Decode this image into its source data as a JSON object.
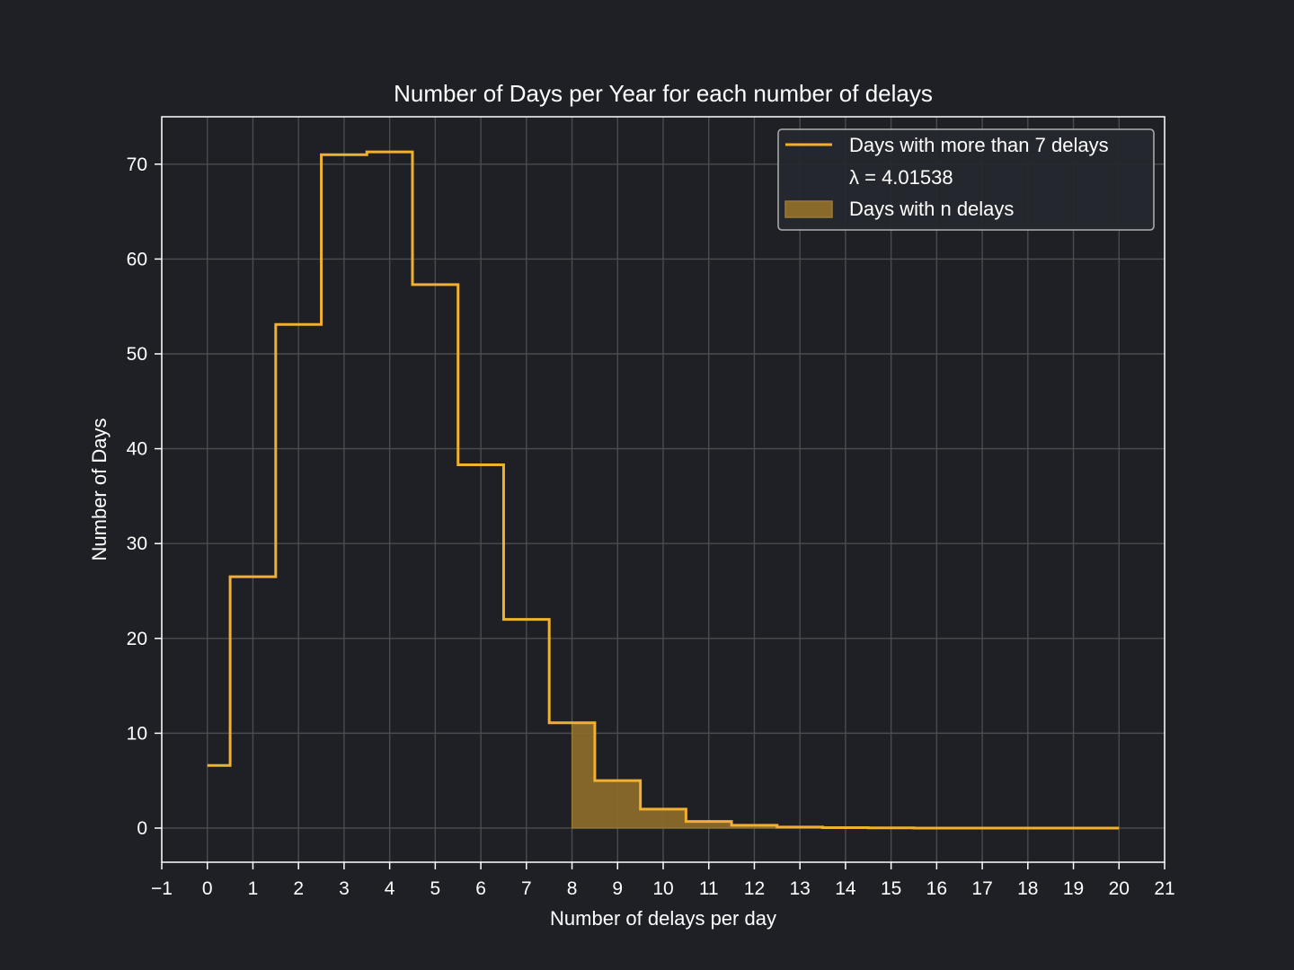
{
  "chart_data": {
    "type": "line",
    "title": "Number of Days per Year for each number of delays",
    "xlabel": "Number of delays per day",
    "ylabel": "Number of Days",
    "xlim": [
      -1,
      21
    ],
    "ylim": [
      -3.6,
      75
    ],
    "x_ticks": [
      -1,
      0,
      1,
      2,
      3,
      4,
      5,
      6,
      7,
      8,
      9,
      10,
      11,
      12,
      13,
      14,
      15,
      16,
      17,
      18,
      19,
      20,
      21
    ],
    "x_tick_labels": [
      "−1",
      "0",
      "1",
      "2",
      "3",
      "4",
      "5",
      "6",
      "7",
      "8",
      "9",
      "10",
      "11",
      "12",
      "13",
      "14",
      "15",
      "16",
      "17",
      "18",
      "19",
      "20",
      "21"
    ],
    "y_ticks": [
      0,
      10,
      20,
      30,
      40,
      50,
      60,
      70
    ],
    "y_tick_labels": [
      "0",
      "10",
      "20",
      "30",
      "40",
      "50",
      "60",
      "70"
    ],
    "grid": true,
    "legend_position": "top-right",
    "series": [
      {
        "name": "Days with more than 7 delays",
        "kind": "step",
        "color": "#f0b030",
        "x": [
          0,
          1,
          2,
          3,
          4,
          5,
          6,
          7,
          8,
          9,
          10,
          11,
          12,
          13,
          14,
          15,
          16,
          17,
          18,
          19,
          20
        ],
        "values": [
          6.6,
          26.5,
          53.1,
          71.0,
          71.3,
          57.3,
          38.3,
          22.0,
          11.1,
          5.0,
          2.0,
          0.7,
          0.3,
          0.1,
          0.05,
          0.02,
          0,
          0,
          0,
          0,
          0
        ]
      },
      {
        "name": "Days with n delays",
        "kind": "filled-step",
        "color": "#8a6a2a",
        "edge_color": "#9b7a35",
        "x_start": 8,
        "x": [
          8,
          9,
          10,
          11,
          12,
          13,
          14,
          15,
          16,
          17,
          18,
          19,
          20
        ],
        "values": [
          11.1,
          5.0,
          2.0,
          0.7,
          0.3,
          0.1,
          0.05,
          0.02,
          0,
          0,
          0,
          0,
          0
        ]
      }
    ],
    "legend_entries": [
      {
        "label": "Days with more than 7 delays",
        "marker": "line",
        "color": "#f0b030"
      },
      {
        "label": "λ = 4.01538",
        "marker": "none",
        "color": ""
      },
      {
        "label": "Days with n delays",
        "marker": "patch",
        "color": "#8a6a2a"
      }
    ]
  }
}
